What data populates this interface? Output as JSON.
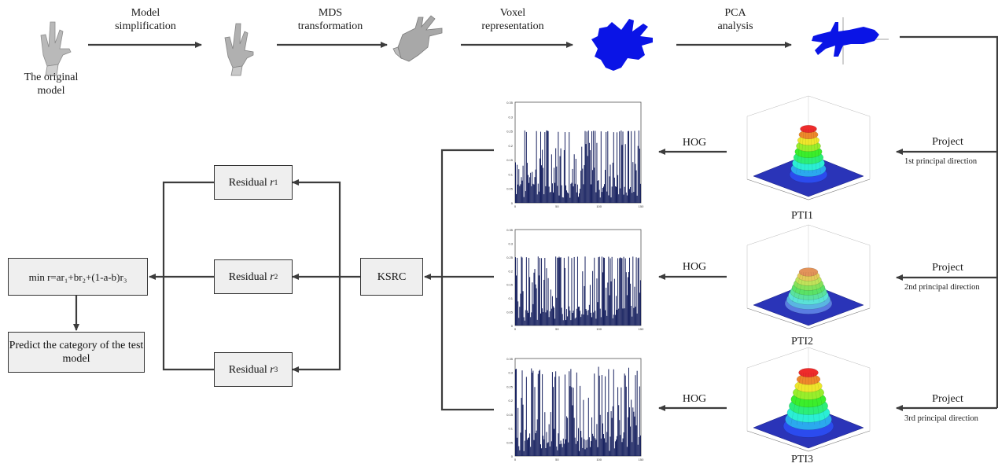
{
  "pipeline": {
    "original_model_label": "The original\nmodel",
    "steps": [
      {
        "line1": "Model",
        "line2": "simplification"
      },
      {
        "line1": "MDS",
        "line2": "transformation"
      },
      {
        "line1": "Voxel",
        "line2": "representation"
      },
      {
        "line1": "PCA",
        "line2": "analysis"
      }
    ]
  },
  "projections": [
    {
      "project_label": "Project",
      "direction_label": "1st principal direction",
      "hog_label": "HOG",
      "pti_label": "PTI1"
    },
    {
      "project_label": "Project",
      "direction_label": "2nd principal direction",
      "hog_label": "HOG",
      "pti_label": "PTI2"
    },
    {
      "project_label": "Project",
      "direction_label": "3rd principal direction",
      "hog_label": "HOG",
      "pti_label": "PTI3"
    }
  ],
  "classifier": {
    "ksrc_label": "KSRC",
    "residuals": [
      {
        "label": "Residual",
        "sym": "r",
        "sub": "1"
      },
      {
        "label": "Residual",
        "sym": "r",
        "sub": "2"
      },
      {
        "label": "Residual",
        "sym": "r",
        "sub": "3"
      }
    ],
    "min_formula": "min r=ar₁+br₂+(1-a-b)r₃",
    "predict_label": "Predict the category of the test model"
  },
  "hog_histograms": [
    {
      "ytick_labels": [
        "0.35",
        "0.3",
        "0.25",
        "0.2",
        "0.15",
        "0.1",
        "0.05",
        "0"
      ],
      "xtick_labels": [
        "0",
        "50",
        "100",
        "150"
      ]
    },
    {
      "ytick_labels": [
        "0.35",
        "0.3",
        "0.25",
        "0.2",
        "0.15",
        "0.1",
        "0.05",
        "0"
      ],
      "xtick_labels": [
        "0",
        "50",
        "100",
        "150"
      ]
    },
    {
      "ytick_labels": [
        "0.35",
        "0.3",
        "0.25",
        "0.2",
        "0.15",
        "0.1",
        "0.05",
        "0"
      ],
      "xtick_labels": [
        "0",
        "50",
        "100",
        "150"
      ]
    }
  ],
  "colors": {
    "arrow": "#3c3c3c",
    "voxel_blue": "#0a14e6",
    "bar": "#101a5a",
    "box_fill": "#efefef"
  }
}
